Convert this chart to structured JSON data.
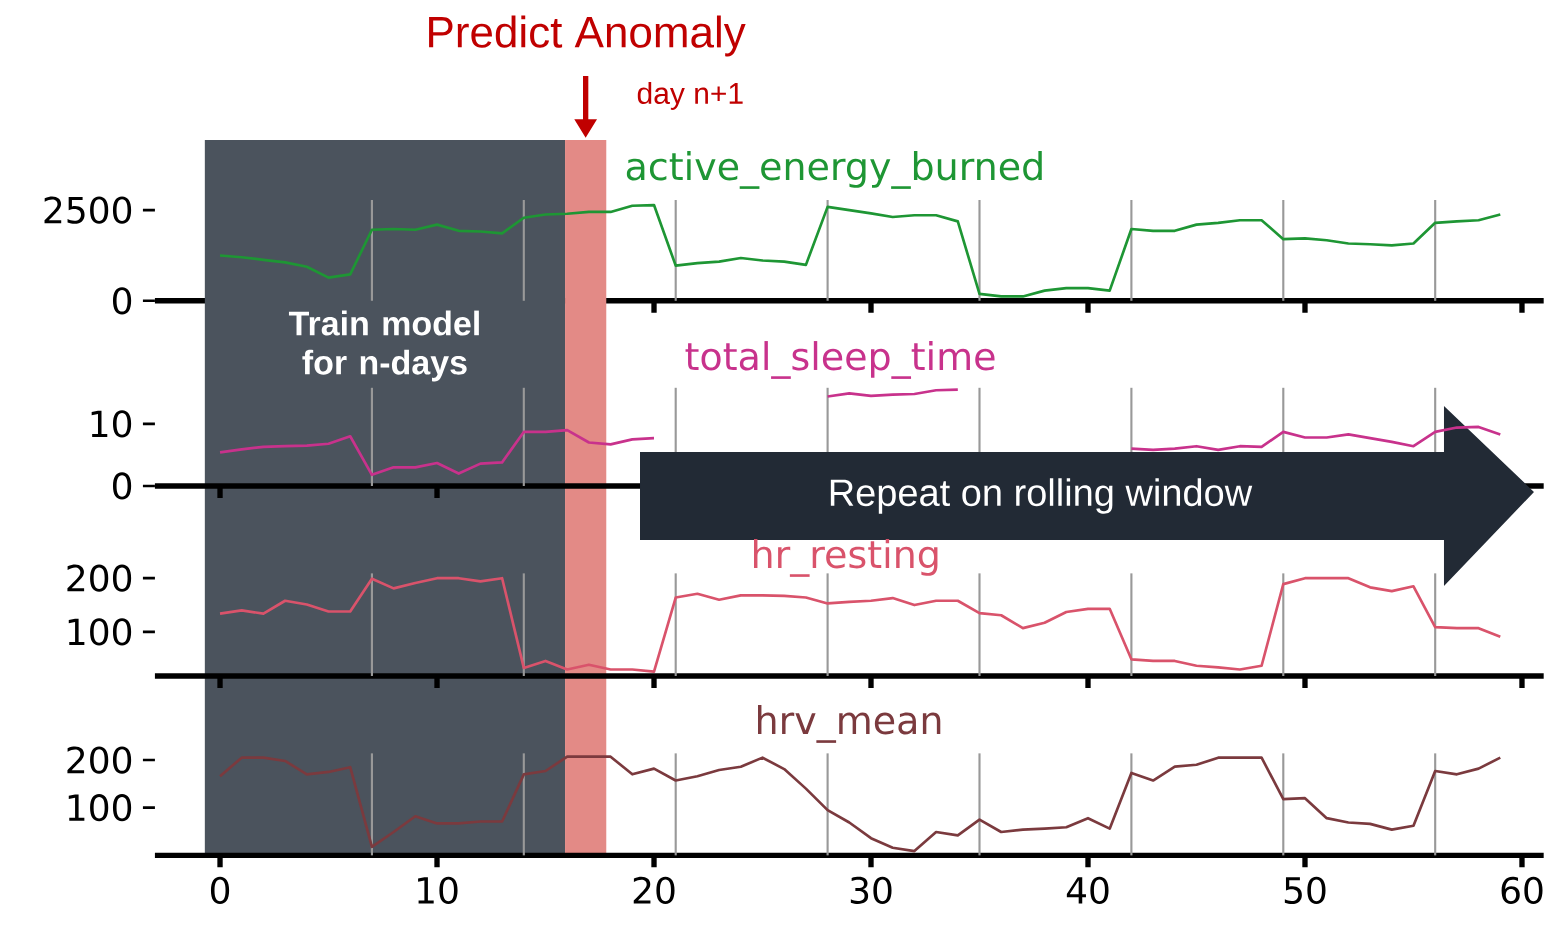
{
  "chart_data": [
    {
      "type": "line",
      "xlim": [
        -3,
        61
      ],
      "ylim": [
        0,
        2780
      ],
      "xticks": [
        0,
        10,
        20,
        30,
        40,
        50,
        60
      ],
      "yticks": [
        0,
        2500
      ],
      "tick_labels": "y",
      "x": [
        0,
        1,
        2,
        3,
        4,
        5,
        6,
        7,
        8,
        9,
        10,
        11,
        12,
        13,
        14,
        15,
        16,
        17,
        18,
        19,
        20,
        21,
        22,
        23,
        24,
        25,
        26,
        27,
        28,
        29,
        30,
        31,
        32,
        33,
        34,
        35,
        36,
        37,
        38,
        39,
        40,
        41,
        42,
        43,
        44,
        45,
        46,
        47,
        48,
        49,
        50,
        51,
        52,
        53,
        54,
        55,
        56,
        57,
        58,
        59
      ],
      "series": [
        {
          "name": "active_energy_burned",
          "color": "#1e9634",
          "values": [
            1250,
            1200,
            1130,
            1060,
            940,
            640,
            730,
            1960,
            1980,
            1960,
            2100,
            1930,
            1910,
            1860,
            2290,
            2380,
            2400,
            2450,
            2450,
            2620,
            2640,
            970,
            1040,
            1080,
            1180,
            1110,
            1080,
            990,
            2590,
            2500,
            2410,
            2310,
            2360,
            2360,
            2190,
            190,
            120,
            120,
            280,
            350,
            350,
            280,
            1980,
            1930,
            1930,
            2100,
            2150,
            2220,
            2220,
            1700,
            1720,
            1670,
            1580,
            1560,
            1530,
            1580,
            2150,
            2190,
            2220,
            2380
          ]
        }
      ],
      "ref_lines": [
        {
          "axis": "x",
          "value": 7,
          "color": "#999999"
        },
        {
          "axis": "x",
          "value": 14,
          "color": "#999999"
        },
        {
          "axis": "x",
          "value": 21,
          "color": "#999999"
        },
        {
          "axis": "x",
          "value": 28,
          "color": "#999999"
        },
        {
          "axis": "x",
          "value": 35,
          "color": "#999999"
        },
        {
          "axis": "x",
          "value": 42,
          "color": "#999999"
        },
        {
          "axis": "x",
          "value": 49,
          "color": "#999999"
        },
        {
          "axis": "x",
          "value": 56,
          "color": "#999999"
        }
      ],
      "bands": [
        {
          "axis": "x",
          "from": -0.7,
          "to": 15.9,
          "label": "Train model for n-days",
          "color": "#4b535d"
        },
        {
          "axis": "x",
          "from": 15.9,
          "to": 17.8,
          "label": "day n+1",
          "color": "#e38a86"
        }
      ],
      "annotations": [
        "Predict Anomaly"
      ]
    },
    {
      "type": "line",
      "xlim": [
        -3,
        61
      ],
      "ylim": [
        0,
        15.8
      ],
      "xticks": [
        0,
        10,
        20,
        30,
        40,
        50,
        60
      ],
      "yticks": [
        0,
        10
      ],
      "tick_labels": "y",
      "x": [
        0,
        1,
        2,
        3,
        4,
        5,
        6,
        7,
        8,
        9,
        10,
        11,
        12,
        13,
        14,
        15,
        16,
        17,
        18,
        19,
        20,
        21,
        22,
        23,
        24,
        25,
        26,
        27,
        28,
        29,
        30,
        31,
        32,
        33,
        34,
        35,
        36,
        37,
        38,
        39,
        40,
        41,
        42,
        43,
        44,
        45,
        46,
        47,
        48,
        49,
        50,
        51,
        52,
        53,
        54,
        55,
        56,
        57,
        58,
        59
      ],
      "series": [
        {
          "name": "total_sleep_time",
          "color": "#c8328c",
          "values": [
            5.4,
            5.9,
            6.3,
            6.4,
            6.5,
            6.8,
            8.0,
            1.8,
            3.0,
            3.0,
            3.7,
            2.0,
            3.6,
            3.8,
            8.7,
            8.7,
            9.0,
            7.0,
            6.7,
            7.5,
            7.7,
            null,
            null,
            null,
            null,
            null,
            null,
            null,
            14.4,
            14.9,
            14.5,
            14.7,
            14.8,
            15.4,
            15.5,
            null,
            null,
            null,
            null,
            null,
            null,
            null,
            6.0,
            5.8,
            6.0,
            6.4,
            5.8,
            6.4,
            6.3,
            8.7,
            7.8,
            7.8,
            8.3,
            7.7,
            7.1,
            6.4,
            8.7,
            9.4,
            9.5,
            8.3
          ]
        }
      ],
      "ref_lines": [
        {
          "axis": "x",
          "value": 7,
          "color": "#999999"
        },
        {
          "axis": "x",
          "value": 14,
          "color": "#999999"
        },
        {
          "axis": "x",
          "value": 21,
          "color": "#999999"
        },
        {
          "axis": "x",
          "value": 28,
          "color": "#999999"
        },
        {
          "axis": "x",
          "value": 35,
          "color": "#999999"
        },
        {
          "axis": "x",
          "value": 42,
          "color": "#999999"
        },
        {
          "axis": "x",
          "value": 49,
          "color": "#999999"
        },
        {
          "axis": "x",
          "value": 56,
          "color": "#999999"
        }
      ],
      "annotations": [
        "Repeat on rolling window"
      ]
    },
    {
      "type": "line",
      "xlim": [
        -3,
        61
      ],
      "ylim": [
        18,
        209
      ],
      "xticks": [
        0,
        10,
        20,
        30,
        40,
        50,
        60
      ],
      "yticks": [
        100,
        200
      ],
      "tick_labels": "y",
      "x": [
        0,
        1,
        2,
        3,
        4,
        5,
        6,
        7,
        8,
        9,
        10,
        11,
        12,
        13,
        14,
        15,
        16,
        17,
        18,
        19,
        20,
        21,
        22,
        23,
        24,
        25,
        26,
        27,
        28,
        29,
        30,
        31,
        32,
        33,
        34,
        35,
        36,
        37,
        38,
        39,
        40,
        41,
        42,
        43,
        44,
        45,
        46,
        47,
        48,
        49,
        50,
        51,
        52,
        53,
        54,
        55,
        56,
        57,
        58,
        59
      ],
      "series": [
        {
          "name": "hr_resting",
          "color": "#d9536b",
          "values": [
            134,
            140,
            134,
            158,
            151,
            138,
            138,
            199,
            181,
            191,
            200,
            200,
            194,
            200,
            33,
            46,
            30,
            39,
            30,
            30,
            26,
            164,
            171,
            160,
            168,
            168,
            167,
            164,
            153,
            156,
            158,
            163,
            150,
            158,
            158,
            135,
            131,
            107,
            117,
            137,
            143,
            143,
            49,
            46,
            46,
            37,
            34,
            30,
            37,
            189,
            200,
            200,
            200,
            183,
            176,
            185,
            109,
            107,
            107,
            91
          ]
        }
      ],
      "ref_lines": [
        {
          "axis": "x",
          "value": 7,
          "color": "#999999"
        },
        {
          "axis": "x",
          "value": 14,
          "color": "#999999"
        },
        {
          "axis": "x",
          "value": 21,
          "color": "#999999"
        },
        {
          "axis": "x",
          "value": 28,
          "color": "#999999"
        },
        {
          "axis": "x",
          "value": 35,
          "color": "#999999"
        },
        {
          "axis": "x",
          "value": 42,
          "color": "#999999"
        },
        {
          "axis": "x",
          "value": 49,
          "color": "#999999"
        },
        {
          "axis": "x",
          "value": 56,
          "color": "#999999"
        }
      ]
    },
    {
      "type": "line",
      "xlim": [
        -3,
        61
      ],
      "ylim": [
        0,
        214
      ],
      "xticks": [
        0,
        10,
        20,
        30,
        40,
        50,
        60
      ],
      "yticks": [
        100,
        200
      ],
      "x": [
        0,
        1,
        2,
        3,
        4,
        5,
        6,
        7,
        8,
        9,
        10,
        11,
        12,
        13,
        14,
        15,
        16,
        17,
        18,
        19,
        20,
        21,
        22,
        23,
        24,
        25,
        26,
        27,
        28,
        29,
        30,
        31,
        32,
        33,
        34,
        35,
        36,
        37,
        38,
        39,
        40,
        41,
        42,
        43,
        44,
        45,
        46,
        47,
        48,
        49,
        50,
        51,
        52,
        53,
        54,
        55,
        56,
        57,
        58,
        59
      ],
      "series": [
        {
          "name": "hrv_mean",
          "color": "#7b3a3e",
          "values": [
            166,
            205,
            205,
            198,
            170,
            175,
            185,
            18,
            49,
            82,
            67,
            67,
            71,
            71,
            170,
            177,
            207,
            207,
            207,
            170,
            182,
            157,
            166,
            179,
            186,
            205,
            181,
            140,
            95,
            69,
            36,
            16,
            9,
            49,
            42,
            75,
            49,
            54,
            56,
            59,
            78,
            56,
            173,
            157,
            186,
            190,
            205,
            205,
            205,
            118,
            120,
            78,
            69,
            66,
            54,
            62,
            177,
            170,
            182,
            205
          ]
        }
      ],
      "ref_lines": [
        {
          "axis": "x",
          "value": 7,
          "color": "#999999"
        },
        {
          "axis": "x",
          "value": 14,
          "color": "#999999"
        },
        {
          "axis": "x",
          "value": 21,
          "color": "#999999"
        },
        {
          "axis": "x",
          "value": 28,
          "color": "#999999"
        },
        {
          "axis": "x",
          "value": 35,
          "color": "#999999"
        },
        {
          "axis": "x",
          "value": 42,
          "color": "#999999"
        },
        {
          "axis": "x",
          "value": 49,
          "color": "#999999"
        },
        {
          "axis": "x",
          "value": 56,
          "color": "#999999"
        }
      ]
    }
  ]
}
